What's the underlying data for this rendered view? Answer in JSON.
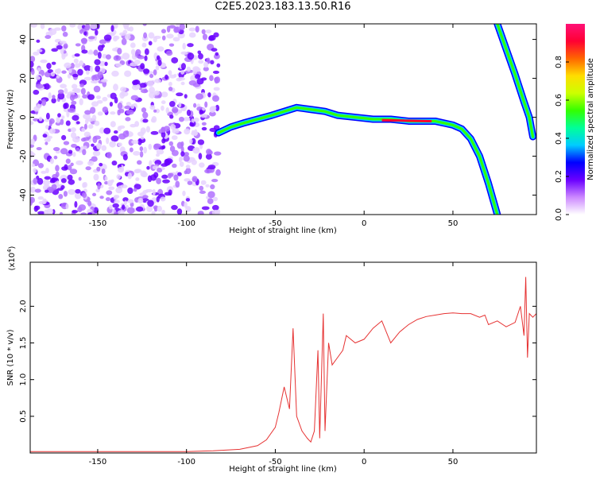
{
  "title": "C2E5.2023.183.13.50.R16",
  "colors": {
    "snr_line": "#e63232",
    "axis": "#000000"
  },
  "chart_data": [
    {
      "type": "heatmap",
      "xlabel": "Height of straight line (km)",
      "ylabel": "Frequency (Hz)",
      "xlim": [
        -188,
        97
      ],
      "ylim": [
        -50,
        48
      ],
      "xticks": [
        -150,
        -100,
        -50,
        0,
        50
      ],
      "yticks": [
        -40,
        -20,
        0,
        20,
        40
      ],
      "tick_labels_x": [
        "-150",
        "-100",
        "-50",
        "0",
        "50"
      ],
      "tick_labels_y": [
        "-40",
        "-20",
        "0",
        "20",
        "40"
      ],
      "colorbar": {
        "label": "Normalized spectral amplitude",
        "range": [
          0,
          1
        ],
        "tick_labels": [
          "0.0",
          "0.2",
          "0.4",
          "0.6",
          "0.8"
        ],
        "colors": [
          "#ffffff",
          "#cc88ff",
          "#6a00ff",
          "#0000ff",
          "#00ccff",
          "#00ff99",
          "#33ff00",
          "#ccff00",
          "#ffdd00",
          "#ff6600",
          "#ff0033",
          "#ff1177"
        ]
      },
      "trace": {
        "x": [
          -82,
          -75,
          -68,
          -60,
          -52,
          -45,
          -38,
          -30,
          -22,
          -15,
          -5,
          5,
          15,
          25,
          35,
          40,
          45,
          50,
          55,
          60,
          65,
          70,
          75
        ],
        "y": [
          -8,
          -5,
          -3,
          -1,
          1,
          3,
          5,
          4,
          3,
          1,
          0,
          -1,
          -1,
          -2,
          -2,
          -2,
          -3,
          -4,
          -6,
          -11,
          -20,
          -34,
          -50
        ],
        "noise_region_x": [
          -188,
          -82
        ]
      },
      "trace2": {
        "x": [
          75,
          80,
          85,
          90,
          93,
          95
        ],
        "y": [
          48,
          35,
          22,
          8,
          0,
          -10
        ]
      }
    },
    {
      "type": "line",
      "xlabel": "Height of straight line (km)",
      "ylabel": "SNR (10 * v/v)",
      "scale_label": "(x10",
      "scale_exp": "4",
      "scale_close": ")",
      "xlim": [
        -188,
        97
      ],
      "ylim": [
        0,
        2.6
      ],
      "xticks": [
        -150,
        -100,
        -50,
        0,
        50
      ],
      "yticks": [
        0.5,
        1.0,
        1.5,
        2.0
      ],
      "tick_labels_x": [
        "-150",
        "-100",
        "-50",
        "0",
        "50"
      ],
      "tick_labels_y": [
        "0.5",
        "1.0",
        "1.5",
        "2.0"
      ],
      "series": [
        {
          "x": [
            -188,
            -150,
            -100,
            -85,
            -70,
            -60,
            -55,
            -50,
            -48,
            -45,
            -42,
            -40,
            -38,
            -35,
            -32,
            -30,
            -28,
            -26,
            -25,
            -23,
            -22,
            -20,
            -18,
            -15,
            -12,
            -10,
            -5,
            0,
            5,
            10,
            15,
            20,
            25,
            30,
            35,
            40,
            45,
            50,
            55,
            60,
            65,
            68,
            70,
            75,
            80,
            85,
            88,
            90,
            91,
            92,
            93,
            95,
            97
          ],
          "y": [
            0.02,
            0.02,
            0.02,
            0.03,
            0.05,
            0.1,
            0.18,
            0.35,
            0.55,
            0.9,
            0.6,
            1.7,
            0.5,
            0.3,
            0.2,
            0.15,
            0.3,
            1.4,
            0.2,
            1.9,
            0.3,
            1.5,
            1.2,
            1.3,
            1.4,
            1.6,
            1.5,
            1.55,
            1.7,
            1.8,
            1.5,
            1.65,
            1.75,
            1.82,
            1.86,
            1.88,
            1.9,
            1.91,
            1.9,
            1.9,
            1.85,
            1.88,
            1.75,
            1.8,
            1.72,
            1.78,
            2.0,
            1.6,
            2.4,
            1.3,
            1.9,
            1.85,
            1.9
          ]
        }
      ]
    }
  ]
}
